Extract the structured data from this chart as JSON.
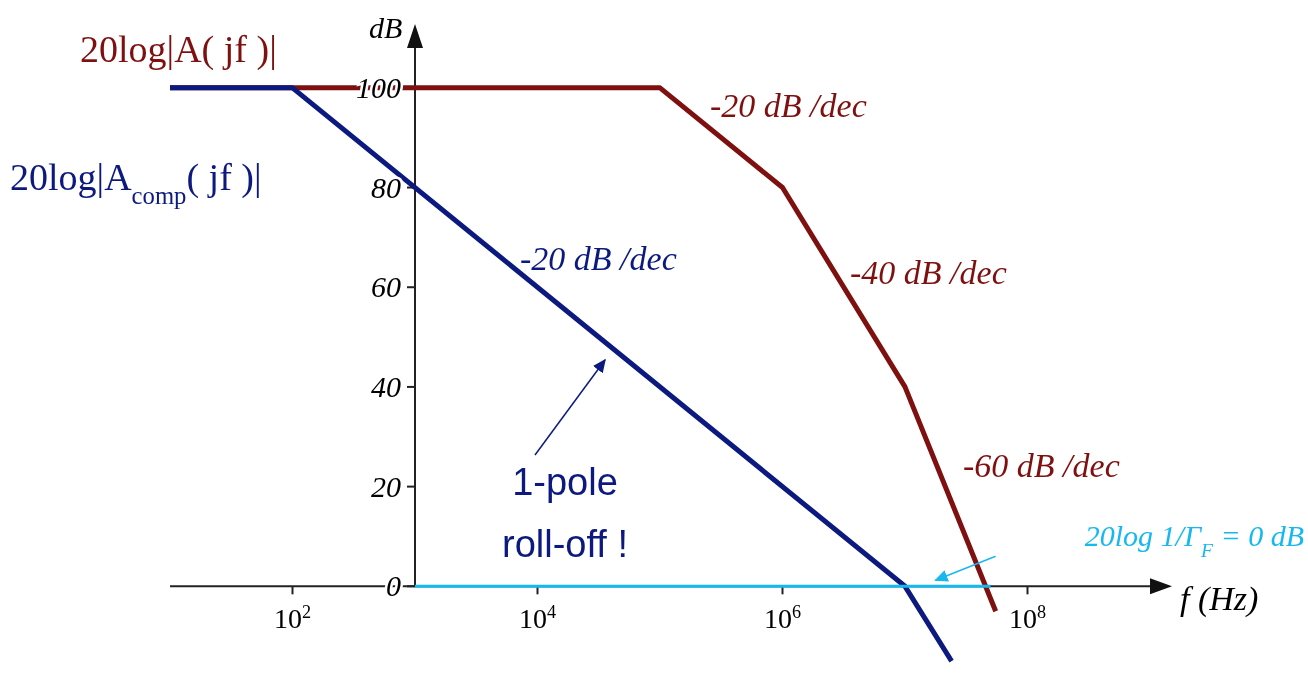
{
  "chart_data": {
    "type": "line",
    "xlabel": "f (Hz)",
    "ylabel": "dB",
    "log": "x",
    "xlim": [
      10,
      1000000000
    ],
    "ylim": [
      -20,
      110
    ],
    "xticks": [
      {
        "value": 100,
        "label": "10$^{2}$"
      },
      {
        "value": 10000,
        "label": "10$^{4}$"
      },
      {
        "value": 1000000,
        "label": "10$^{6}$"
      },
      {
        "value": 100000000,
        "label": "10$^{8}$"
      }
    ],
    "yticks": [
      0,
      20,
      40,
      60,
      80,
      100
    ],
    "grid": false,
    "legend": "top left",
    "marker": "none",
    "line_style": "solid",
    "series": [
      {
        "name": "20log|A( jf )|",
        "color": "#7f1010",
        "x": [
          10,
          100000,
          1000000,
          10000000,
          55000000
        ],
        "values": [
          100,
          100,
          80,
          40,
          -5
        ]
      },
      {
        "name": "20log|A$_{comp}$( jf )|",
        "color": "#0c1a80",
        "x": [
          10,
          100,
          10000000,
          24000000
        ],
        "values": [
          100,
          100,
          0,
          -15
        ]
      },
      {
        "name": "20log 1/Γ$_{F}$ = 0 dB",
        "color": "#16b8f0",
        "x": [
          1000,
          50000000
        ],
        "values": [
          0,
          0
        ]
      }
    ],
    "annotations": [
      "-20 dB /dec",
      "-20 dB /dec",
      "-40 dB /dec",
      "-60 dB /dec",
      "1-pole roll-off !"
    ]
  }
}
